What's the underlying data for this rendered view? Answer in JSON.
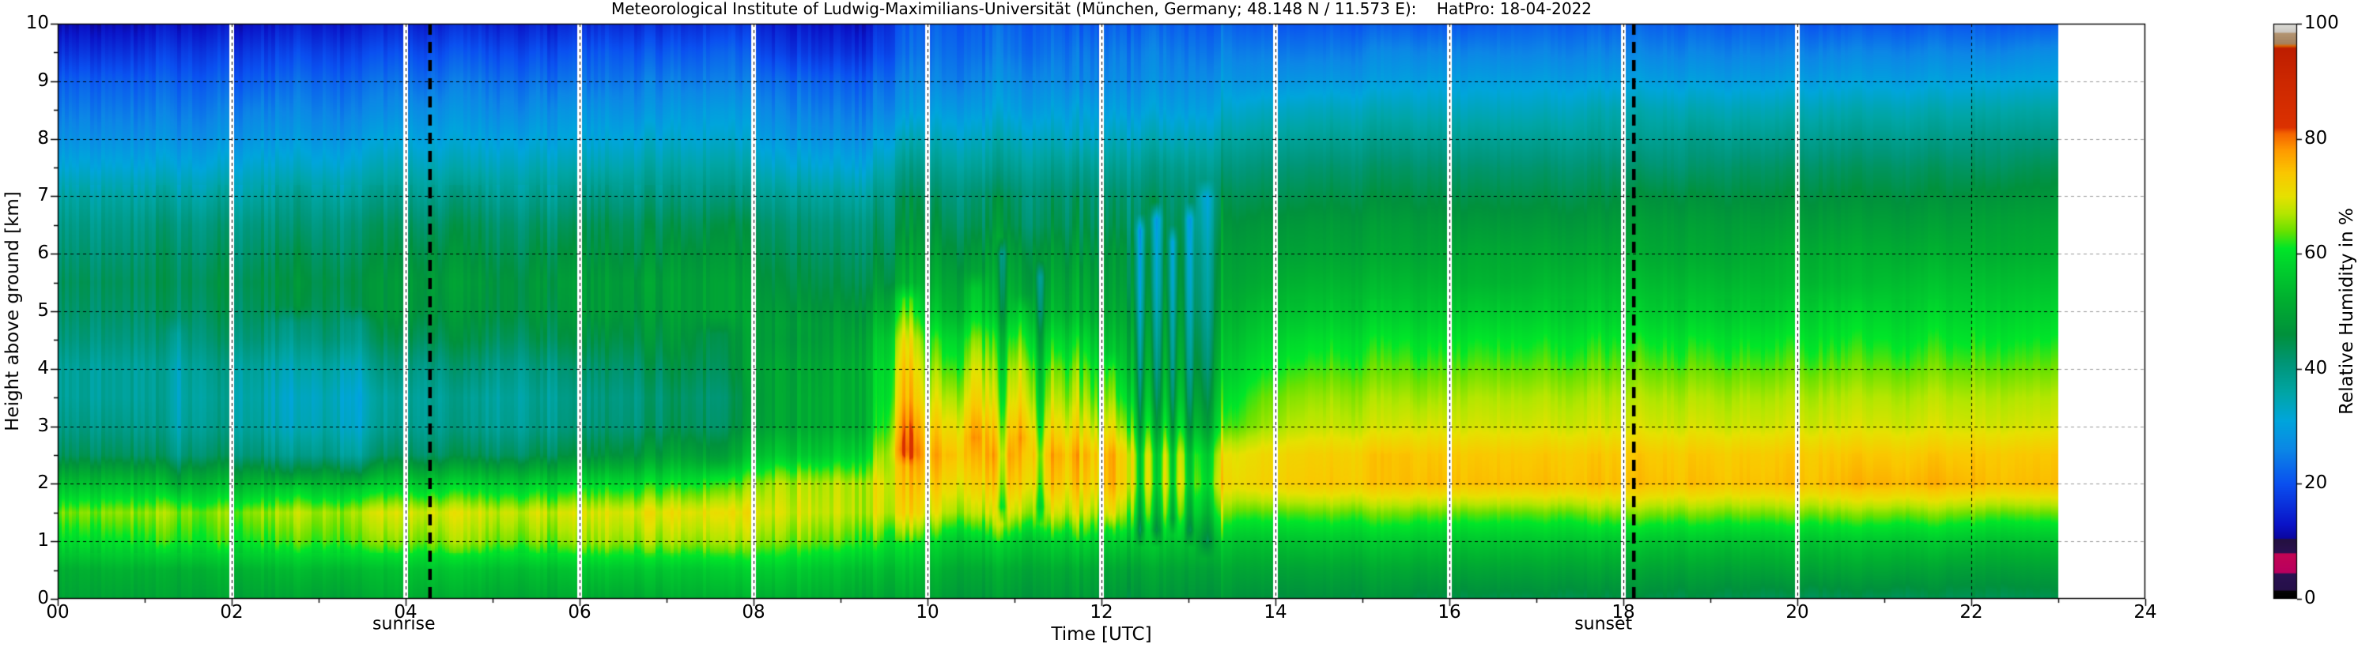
{
  "figure": {
    "title": "Meteorological Institute of Ludwig-Maximilians-Universität (München, Germany; 48.148 N / 11.573 E):    HatPro: 18-04-2022",
    "background": "#ffffff"
  },
  "axes": {
    "xlabel": "Time [UTC]",
    "ylabel": "Height above ground [km]",
    "x_tick_labels": [
      "00",
      "02",
      "04",
      "06",
      "08",
      "10",
      "12",
      "14",
      "16",
      "18",
      "20",
      "22",
      "24"
    ],
    "x_tick_hours": [
      0,
      2,
      4,
      6,
      8,
      10,
      12,
      14,
      16,
      18,
      20,
      22,
      24
    ],
    "y_tick_labels": [
      "0",
      "1",
      "2",
      "3",
      "4",
      "5",
      "6",
      "7",
      "8",
      "9",
      "10"
    ],
    "y_tick_km": [
      0,
      1,
      2,
      3,
      4,
      5,
      6,
      7,
      8,
      9,
      10
    ]
  },
  "colorbar": {
    "label": "Relative Humidity in %",
    "tick_labels": [
      "0",
      "20",
      "40",
      "60",
      "80",
      "100"
    ],
    "tick_values": [
      0,
      20,
      40,
      60,
      80,
      100
    ],
    "stops": [
      [
        0,
        "#000000"
      ],
      [
        1.4,
        "#050505"
      ],
      [
        1.6,
        "#26104a"
      ],
      [
        4.4,
        "#2a1252"
      ],
      [
        4.6,
        "#b9005f"
      ],
      [
        7.9,
        "#c30554"
      ],
      [
        8.1,
        "#2b1150"
      ],
      [
        10.4,
        "#241040"
      ],
      [
        10.6,
        "#0b06a0"
      ],
      [
        13,
        "#0a14c8"
      ],
      [
        20,
        "#0a50f0"
      ],
      [
        26,
        "#0c87e6"
      ],
      [
        31,
        "#00a5dc"
      ],
      [
        36,
        "#00a5a5"
      ],
      [
        41,
        "#009678"
      ],
      [
        46,
        "#00913c"
      ],
      [
        52,
        "#00af30"
      ],
      [
        58,
        "#00d22d"
      ],
      [
        61,
        "#00e628"
      ],
      [
        64,
        "#69e100"
      ],
      [
        67,
        "#b4e600"
      ],
      [
        70,
        "#e6e100"
      ],
      [
        74,
        "#fac800"
      ],
      [
        78,
        "#ff9b00"
      ],
      [
        81,
        "#f56400"
      ],
      [
        82,
        "#dc3200"
      ],
      [
        90,
        "#cd2800"
      ],
      [
        95.8,
        "#be1e00"
      ],
      [
        96.2,
        "#dc6400"
      ],
      [
        96.6,
        "#a5825f"
      ],
      [
        98.4,
        "#b49673"
      ],
      [
        98.6,
        "#cdc8c3"
      ],
      [
        100,
        "#dcdcd7"
      ]
    ]
  },
  "annotations": {
    "sunrise": {
      "label": "sunrise",
      "time_utc": 4.28
    },
    "sunset": {
      "label": "sunset",
      "time_utc": 18.12
    }
  },
  "chart_data": {
    "type": "heatmap",
    "title": "Meteorological Institute of Ludwig-Maximilians-Universität (München, Germany; 48.148 N / 11.573 E):    HatPro: 18-04-2022",
    "xlabel": "Time [UTC]",
    "ylabel": "Height above ground [km]",
    "value_label": "Relative Humidity in %",
    "x_range_hours": [
      0,
      24
    ],
    "y_range_km": [
      0,
      10
    ],
    "value_range": [
      0,
      100
    ],
    "time_start_hour": 0.0,
    "time_step_hours": 0.5,
    "data_end_hour": 23.0,
    "gap_hours": [
      2,
      4,
      6,
      8,
      10,
      12,
      14,
      16,
      18,
      20
    ],
    "grid_hours_vertical": [
      2,
      4,
      6,
      8,
      10,
      12,
      14,
      16,
      18,
      20,
      22
    ],
    "heights_km": [
      0,
      0.5,
      1,
      1.5,
      2,
      2.5,
      3,
      3.5,
      4,
      4.5,
      5,
      5.5,
      6,
      6.5,
      7,
      7.5,
      8,
      8.5,
      9,
      9.5,
      10
    ],
    "values": [
      [
        50,
        52,
        60,
        65,
        55,
        44,
        40,
        38,
        38,
        41,
        43,
        44,
        42,
        40,
        37,
        32,
        28,
        25,
        22,
        17,
        12
      ],
      [
        50,
        53,
        61,
        66,
        56,
        44,
        40,
        38,
        38,
        41,
        43,
        44,
        42,
        40,
        37,
        32,
        28,
        25,
        22,
        17,
        12
      ],
      [
        50,
        52,
        62,
        66,
        55,
        43,
        39,
        38,
        38,
        41,
        43,
        44,
        43,
        41,
        37,
        32,
        28,
        25,
        22,
        18,
        13
      ],
      [
        50,
        53,
        62,
        65,
        54,
        43,
        39,
        38,
        39,
        42,
        44,
        45,
        43,
        41,
        37,
        32,
        28,
        25,
        22,
        18,
        13
      ],
      [
        50,
        53,
        62,
        66,
        54,
        42,
        38,
        37,
        38,
        42,
        44,
        45,
        43,
        41,
        37,
        33,
        29,
        26,
        22,
        18,
        13
      ],
      [
        50,
        54,
        63,
        67,
        55,
        42,
        37,
        36,
        38,
        42,
        45,
        46,
        44,
        41,
        38,
        33,
        29,
        26,
        23,
        19,
        14
      ],
      [
        50,
        54,
        64,
        67,
        55,
        41,
        37,
        36,
        38,
        43,
        45,
        46,
        44,
        42,
        38,
        33,
        29,
        26,
        23,
        19,
        14
      ],
      [
        51,
        54,
        64,
        68,
        56,
        42,
        37,
        36,
        39,
        43,
        46,
        46,
        44,
        42,
        38,
        34,
        30,
        26,
        23,
        19,
        14
      ],
      [
        51,
        55,
        64,
        68,
        56,
        42,
        38,
        37,
        39,
        43,
        46,
        47,
        45,
        42,
        38,
        34,
        30,
        27,
        23,
        19,
        14
      ],
      [
        51,
        55,
        65,
        68,
        57,
        43,
        38,
        37,
        40,
        44,
        46,
        47,
        45,
        43,
        39,
        34,
        30,
        27,
        24,
        20,
        15
      ],
      [
        51,
        55,
        65,
        69,
        58,
        44,
        39,
        38,
        40,
        44,
        47,
        47,
        45,
        43,
        39,
        35,
        31,
        27,
        24,
        20,
        15
      ],
      [
        51,
        55,
        65,
        69,
        58,
        45,
        40,
        39,
        41,
        45,
        47,
        48,
        46,
        43,
        39,
        35,
        31,
        28,
        24,
        20,
        15
      ],
      [
        51,
        56,
        66,
        69,
        59,
        46,
        41,
        40,
        42,
        45,
        48,
        48,
        46,
        44,
        40,
        35,
        31,
        28,
        24,
        21,
        16
      ],
      [
        51,
        56,
        66,
        70,
        60,
        48,
        42,
        41,
        43,
        46,
        48,
        49,
        46,
        44,
        40,
        36,
        32,
        28,
        25,
        21,
        16
      ],
      [
        52,
        56,
        66,
        70,
        61,
        50,
        44,
        43,
        45,
        47,
        49,
        49,
        47,
        44,
        40,
        36,
        32,
        29,
        25,
        21,
        16
      ],
      [
        52,
        57,
        66,
        70,
        62,
        52,
        46,
        45,
        47,
        48,
        49,
        49,
        47,
        45,
        40,
        36,
        32,
        29,
        25,
        22,
        17
      ],
      [
        52,
        57,
        65,
        69,
        67,
        58,
        52,
        52,
        52,
        50,
        48,
        46,
        44,
        42,
        38,
        33,
        29,
        26,
        23,
        18,
        14
      ],
      [
        52,
        56,
        64,
        68,
        67,
        58,
        53,
        53,
        52,
        50,
        47,
        45,
        43,
        41,
        37,
        32,
        28,
        25,
        22,
        17,
        13
      ],
      [
        51,
        55,
        63,
        68,
        68,
        59,
        53,
        53,
        53,
        51,
        48,
        45,
        43,
        41,
        37,
        32,
        28,
        25,
        22,
        17,
        13
      ],
      [
        50,
        54,
        60,
        70,
        72,
        75,
        72,
        68,
        66,
        63,
        56,
        50,
        47,
        44,
        42,
        38,
        33,
        28,
        25,
        22,
        20
      ],
      [
        49,
        52,
        58,
        68,
        73,
        76,
        72,
        68,
        64,
        60,
        54,
        51,
        48,
        45,
        42,
        38,
        34,
        30,
        26,
        24,
        22
      ],
      [
        48,
        51,
        58,
        69,
        74,
        77,
        73,
        69,
        66,
        62,
        55,
        52,
        49,
        45,
        43,
        38,
        34,
        30,
        27,
        24,
        22
      ],
      [
        48,
        51,
        57,
        68,
        74,
        76,
        71,
        67,
        64,
        59,
        53,
        50,
        48,
        44,
        42,
        38,
        34,
        30,
        27,
        24,
        22
      ],
      [
        48,
        51,
        58,
        68,
        73,
        75,
        70,
        66,
        63,
        58,
        52,
        50,
        47,
        44,
        42,
        38,
        33,
        30,
        26,
        24,
        21
      ],
      [
        47,
        50,
        57,
        66,
        72,
        72,
        65,
        60,
        56,
        53,
        50,
        48,
        47,
        44,
        42,
        38,
        34,
        30,
        27,
        25,
        22
      ],
      [
        47,
        50,
        56,
        65,
        70,
        69,
        61,
        56,
        53,
        51,
        49,
        47,
        46,
        44,
        42,
        39,
        34,
        30,
        27,
        25,
        22
      ],
      [
        47,
        50,
        56,
        64,
        70,
        68,
        60,
        56,
        53,
        51,
        49,
        48,
        47,
        45,
        43,
        39,
        35,
        31,
        28,
        25,
        22
      ],
      [
        46,
        50,
        55,
        63,
        72,
        71,
        65,
        63,
        60,
        57,
        54,
        51,
        49,
        47,
        44,
        41,
        37,
        33,
        28,
        25,
        21
      ],
      [
        46,
        50,
        56,
        64,
        74,
        73,
        68,
        66,
        63,
        60,
        56,
        53,
        50,
        48,
        45,
        42,
        38,
        34,
        29,
        25,
        21
      ],
      [
        46,
        50,
        56,
        64,
        74,
        73,
        68,
        66,
        63,
        60,
        56,
        53,
        50,
        48,
        45,
        42,
        38,
        34,
        29,
        25,
        21
      ],
      [
        46,
        50,
        56,
        64,
        74,
        74,
        68,
        66,
        63,
        60,
        56,
        53,
        50,
        48,
        45,
        42,
        38,
        34,
        29,
        26,
        21
      ],
      [
        45,
        50,
        56,
        64,
        75,
        74,
        69,
        66,
        63,
        60,
        56,
        53,
        50,
        48,
        45,
        42,
        38,
        34,
        30,
        26,
        21
      ],
      [
        45,
        50,
        56,
        64,
        75,
        74,
        69,
        67,
        64,
        61,
        57,
        53,
        51,
        48,
        45,
        42,
        38,
        34,
        30,
        26,
        21
      ],
      [
        45,
        50,
        56,
        64,
        75,
        74,
        69,
        67,
        64,
        61,
        57,
        53,
        51,
        48,
        45,
        42,
        38,
        34,
        30,
        26,
        22
      ],
      [
        45,
        50,
        56,
        64,
        75,
        74,
        69,
        67,
        64,
        61,
        57,
        54,
        51,
        48,
        45,
        42,
        38,
        34,
        30,
        26,
        22
      ],
      [
        45,
        50,
        56,
        65,
        75,
        74,
        69,
        67,
        64,
        61,
        57,
        54,
        51,
        48,
        45,
        42,
        38,
        35,
        30,
        26,
        22
      ],
      [
        45,
        50,
        56,
        65,
        75,
        74,
        69,
        67,
        64,
        61,
        57,
        54,
        51,
        49,
        46,
        42,
        38,
        35,
        30,
        26,
        22
      ],
      [
        45,
        50,
        56,
        65,
        75,
        74,
        69,
        67,
        64,
        61,
        57,
        54,
        51,
        49,
        46,
        42,
        39,
        35,
        30,
        26,
        22
      ],
      [
        45,
        50,
        56,
        65,
        75,
        74,
        69,
        67,
        64,
        61,
        57,
        54,
        51,
        49,
        46,
        43,
        39,
        35,
        30,
        26,
        22
      ],
      [
        44,
        50,
        56,
        65,
        75,
        74,
        69,
        67,
        64,
        61,
        57,
        54,
        52,
        49,
        46,
        43,
        39,
        35,
        30,
        26,
        22
      ],
      [
        44,
        50,
        56,
        65,
        75,
        74,
        69,
        67,
        64,
        61,
        58,
        54,
        52,
        49,
        46,
        43,
        39,
        35,
        30,
        26,
        21
      ],
      [
        44,
        50,
        56,
        65,
        76,
        74,
        69,
        67,
        64,
        61,
        58,
        54,
        52,
        49,
        46,
        43,
        39,
        35,
        30,
        26,
        21
      ],
      [
        44,
        50,
        56,
        65,
        76,
        74,
        69,
        67,
        64,
        61,
        58,
        55,
        52,
        49,
        46,
        43,
        39,
        35,
        30,
        26,
        21
      ],
      [
        44,
        49,
        56,
        65,
        76,
        74,
        69,
        67,
        64,
        61,
        58,
        55,
        52,
        49,
        46,
        43,
        39,
        35,
        30,
        26,
        21
      ],
      [
        44,
        49,
        55,
        64,
        75,
        74,
        69,
        67,
        64,
        61,
        58,
        55,
        52,
        50,
        47,
        43,
        40,
        36,
        31,
        26,
        21
      ],
      [
        44,
        49,
        55,
        64,
        75,
        74,
        69,
        67,
        64,
        61,
        58,
        55,
        52,
        50,
        47,
        44,
        40,
        36,
        31,
        27,
        21
      ]
    ],
    "features": [
      {
        "t": 1.35,
        "w": 0.12,
        "h0": 2.0,
        "h1": 4.6,
        "dv": -3
      },
      {
        "t": 2.7,
        "w": 0.25,
        "h0": 2.2,
        "h1": 4.8,
        "dv": -4
      },
      {
        "t": 3.45,
        "w": 0.18,
        "h0": 2.2,
        "h1": 4.8,
        "dv": -4
      },
      {
        "t": 7.6,
        "w": 0.2,
        "h0": 2.4,
        "h1": 4.6,
        "dv": -4
      },
      {
        "t": 8.5,
        "w": 0.5,
        "h0": 2.5,
        "h1": 4.5,
        "dv": -2
      },
      {
        "t": 9.75,
        "w": 0.14,
        "h0": 2.6,
        "h1": 5.2,
        "dv": 6
      },
      {
        "t": 10.55,
        "w": 0.12,
        "h0": 2.8,
        "h1": 5.4,
        "dv": 5
      },
      {
        "t": 10.85,
        "w": 0.055,
        "h0": 1.6,
        "h1": 6.0,
        "dv": -13
      },
      {
        "t": 11.1,
        "w": 0.1,
        "h0": 2.8,
        "h1": 5.0,
        "dv": 5
      },
      {
        "t": 11.3,
        "w": 0.05,
        "h0": 1.6,
        "h1": 5.6,
        "dv": -11
      },
      {
        "t": 12.1,
        "w": 0.08,
        "h0": 1.5,
        "h1": 4.0,
        "dv": 4
      },
      {
        "t": 12.45,
        "w": 0.05,
        "h0": 1.2,
        "h1": 6.4,
        "dv": -15
      },
      {
        "t": 12.63,
        "w": 0.06,
        "h0": 1.2,
        "h1": 6.6,
        "dv": -17
      },
      {
        "t": 12.82,
        "w": 0.045,
        "h0": 1.4,
        "h1": 6.2,
        "dv": -13
      },
      {
        "t": 13.02,
        "w": 0.05,
        "h0": 1.2,
        "h1": 6.6,
        "dv": -15
      },
      {
        "t": 13.2,
        "w": 0.09,
        "h0": 1.0,
        "h1": 7.0,
        "dv": -10
      }
    ]
  }
}
